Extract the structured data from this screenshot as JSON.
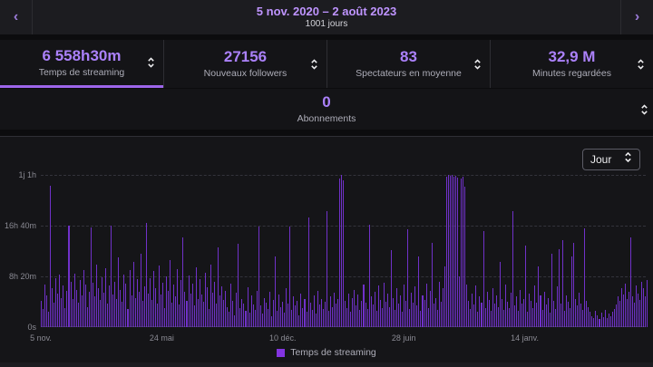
{
  "theme": {
    "accent": "#bf94ff",
    "number": "#ab81fa",
    "bar": "#7031c9",
    "underline": "#9d66ea",
    "legend_swatch": "#8334e0"
  },
  "topbar": {
    "prev_icon": "‹",
    "next_icon": "›",
    "title": "5 nov. 2020 – 2 août 2023",
    "subtitle": "1001 jours"
  },
  "stats": [
    {
      "value": "6 558h30m",
      "label": "Temps de streaming",
      "selected": true
    },
    {
      "value": "27156",
      "label": "Nouveaux followers",
      "selected": false
    },
    {
      "value": "83",
      "label": "Spectateurs en moyenne",
      "selected": false
    },
    {
      "value": "32,9 M",
      "label": "Minutes regardées",
      "selected": false
    }
  ],
  "subscriptions": {
    "value": "0",
    "label": "Abonnements"
  },
  "chart_controls": {
    "interval": "Jour"
  },
  "chart_data": {
    "type": "bar",
    "legend": [
      {
        "label": "Temps de streaming",
        "color": "#7031c9"
      }
    ],
    "unit": "minutes_streamed_per_day",
    "ylim": [
      0,
      1500
    ],
    "yticks": [
      {
        "label": "0s",
        "value": 0
      },
      {
        "label": "8h 20m",
        "value": 500
      },
      {
        "label": "16h 40m",
        "value": 1000
      },
      {
        "label": "1j 1h",
        "value": 1500
      }
    ],
    "xticks": {
      "labels": [
        "5 nov.",
        "24 mai",
        "10 déc.",
        "28 juin",
        "14 janv."
      ],
      "positions_pct": [
        0,
        20,
        40,
        60,
        80
      ]
    },
    "grid": "dashed-horizontal",
    "legend_position": "bottom-center",
    "values": [
      260,
      180,
      420,
      310,
      150,
      1390,
      380,
      240,
      480,
      330,
      520,
      290,
      410,
      190,
      360,
      1000,
      450,
      280,
      530,
      370,
      240,
      460,
      310,
      560,
      420,
      200,
      350,
      980,
      440,
      300,
      620,
      380,
      270,
      490,
      340,
      580,
      230,
      410,
      1000,
      320,
      450,
      280,
      690,
      370,
      250,
      520,
      430,
      180,
      560,
      310,
      640,
      290,
      470,
      350,
      720,
      260,
      400,
      1030,
      330,
      480,
      270,
      550,
      380,
      230,
      610,
      320,
      440,
      190,
      500,
      360,
      660,
      240,
      420,
      300,
      570,
      220,
      460,
      880,
      350,
      260,
      510,
      330,
      430,
      210,
      590,
      280,
      470,
      320,
      250,
      540,
      390,
      180,
      620,
      340,
      450,
      230,
      790,
      310,
      400,
      270,
      360,
      200,
      150,
      430,
      260,
      120,
      340,
      820,
      190,
      280,
      230,
      160,
      390,
      140,
      310,
      220,
      170,
      360,
      990,
      210,
      130,
      290,
      240,
      180,
      350,
      110,
      270,
      700,
      160,
      320,
      200,
      250,
      140,
      380,
      230,
      990,
      170,
      300,
      210,
      260,
      120,
      330,
      190,
      280,
      150,
      1080,
      240,
      170,
      310,
      130,
      360,
      220,
      280,
      180,
      250,
      1140,
      160,
      300,
      200,
      340,
      230,
      280,
      1460,
      1500,
      1450,
      260,
      190,
      330,
      150,
      290,
      370,
      210,
      320,
      170,
      260,
      420,
      240,
      180,
      1010,
      300,
      220,
      350,
      160,
      410,
      270,
      190,
      440,
      250,
      330,
      200,
      760,
      290,
      170,
      380,
      230,
      310,
      150,
      420,
      260,
      960,
      180,
      340,
      240,
      400,
      210,
      700,
      160,
      310,
      270,
      430,
      190,
      360,
      830,
      230,
      290,
      170,
      450,
      250,
      380,
      600,
      1480,
      1500,
      1490,
      1500,
      1480,
      1490,
      1470,
      500,
      1460,
      1480,
      1380,
      420,
      260,
      180,
      330,
      220,
      410,
      150,
      300,
      240,
      950,
      190,
      350,
      270,
      160,
      380,
      230,
      310,
      200,
      640,
      280,
      170,
      420,
      250,
      190,
      340,
      1140,
      210,
      300,
      160,
      370,
      230,
      280,
      800,
      150,
      330,
      260,
      190,
      410,
      240,
      600,
      310,
      170,
      350,
      220,
      290,
      140,
      720,
      260,
      180,
      400,
      770,
      230,
      860,
      160,
      310,
      250,
      190,
      700,
      830,
      280,
      210,
      340,
      230,
      170,
      970,
      260,
      200,
      150,
      110,
      90,
      160,
      120,
      80,
      140,
      100,
      170,
      90,
      130,
      110,
      150,
      180,
      220,
      300,
      260,
      380,
      320,
      430,
      280,
      350,
      880,
      300,
      240,
      410,
      330,
      270,
      450,
      380,
      300,
      460
    ]
  }
}
